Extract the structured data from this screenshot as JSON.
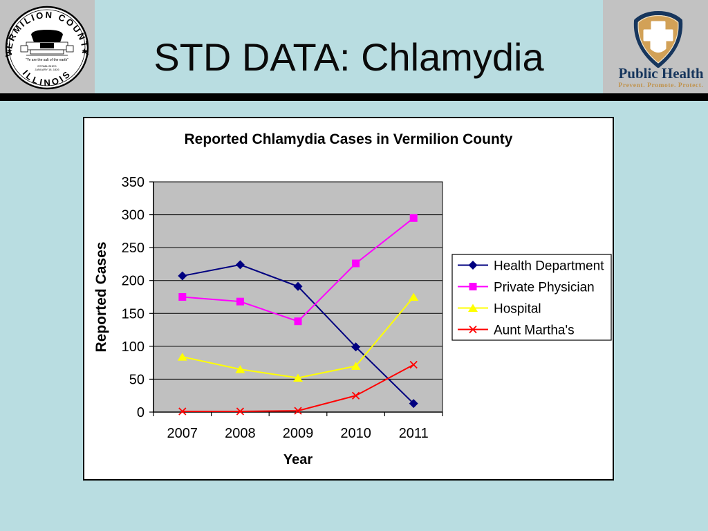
{
  "slide": {
    "title": "STD DATA: Chlamydia"
  },
  "header": {
    "county_seal": {
      "arc_top": "VERMILION COUNTY",
      "arc_bottom": "ILLINOIS",
      "motto": "\"Ye are the salt of the earth\"",
      "established_line1": "ESTABLISHED",
      "established_line2": "JANUARY 18, 1826"
    },
    "public_health_logo": {
      "name": "Public Health",
      "tagline": "Prevent. Promote. Protect."
    }
  },
  "colors": {
    "slide_background": "#b9dde1",
    "corner_block_gray": "#c2c2c2",
    "divider_black": "#000000",
    "logo_navy": "#17365d",
    "logo_tan": "#d2a157",
    "plot_area_gray": "#c0c0c0"
  },
  "chart_data": {
    "type": "line",
    "title": "Reported Chlamydia Cases in Vermilion County",
    "xlabel": "Year",
    "ylabel": "Reported Cases",
    "categories": [
      "2007",
      "2008",
      "2009",
      "2010",
      "2011"
    ],
    "series": [
      {
        "name": "Health Department",
        "color": "#000080",
        "marker": "diamond",
        "values": [
          207,
          224,
          191,
          99,
          13
        ]
      },
      {
        "name": "Private Physician",
        "color": "#ff00ff",
        "marker": "square",
        "values": [
          175,
          168,
          138,
          226,
          295
        ]
      },
      {
        "name": "Hospital",
        "color": "#ffff00",
        "marker": "triangle",
        "values": [
          84,
          65,
          52,
          70,
          175
        ]
      },
      {
        "name": "Aunt Martha's",
        "color": "#ff0000",
        "marker": "x",
        "values": [
          1,
          1,
          2,
          25,
          72
        ]
      }
    ],
    "ylim": [
      0,
      350
    ],
    "ytick_step": 50,
    "grid": true,
    "plot_background": "#c0c0c0",
    "legend_position": "right"
  }
}
